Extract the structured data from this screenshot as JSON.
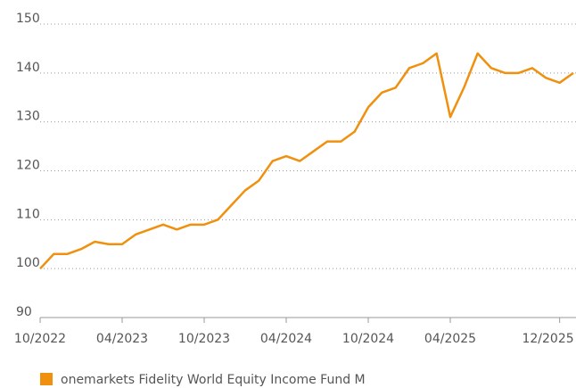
{
  "chart_data": {
    "type": "line",
    "x": [
      "2022-10",
      "2022-11",
      "2022-12",
      "2023-01",
      "2023-02",
      "2023-03",
      "2023-04",
      "2023-05",
      "2023-06",
      "2023-07",
      "2023-08",
      "2023-09",
      "2023-10",
      "2023-11",
      "2023-12",
      "2024-01",
      "2024-02",
      "2024-03",
      "2024-04",
      "2024-05",
      "2024-06",
      "2024-07",
      "2024-08",
      "2024-09",
      "2024-10",
      "2024-11",
      "2024-12",
      "2025-01",
      "2025-02",
      "2025-03",
      "2025-04",
      "2025-05",
      "2025-06",
      "2025-07",
      "2025-08",
      "2025-09",
      "2025-10",
      "2025-11",
      "2025-12",
      "2026-01"
    ],
    "series": [
      {
        "name": "onemarkets Fidelity World Equity Income Fund M",
        "color": "#f0900f",
        "values": [
          100,
          103,
          103,
          104,
          105.5,
          105,
          105,
          107,
          108,
          109,
          108,
          109,
          109,
          110,
          113,
          116,
          118,
          122,
          123,
          122,
          124,
          126,
          126,
          128,
          133,
          136,
          137,
          141,
          142,
          144,
          131,
          137,
          144,
          141,
          140,
          140,
          141,
          139,
          138,
          140
        ]
      }
    ],
    "xlim": [
      "2022-10",
      "2026-01"
    ],
    "xticks": [
      {
        "value": "2022-10",
        "label": "10/2022"
      },
      {
        "value": "2023-04",
        "label": "04/2023"
      },
      {
        "value": "2023-10",
        "label": "10/2023"
      },
      {
        "value": "2024-04",
        "label": "04/2024"
      },
      {
        "value": "2024-10",
        "label": "10/2024"
      },
      {
        "value": "2025-04",
        "label": "04/2025"
      },
      {
        "value": "2025-12",
        "label": "12/2025"
      }
    ],
    "ylim": [
      90,
      150
    ],
    "yticks": [
      90,
      100,
      110,
      120,
      130,
      140,
      150
    ],
    "grid": true,
    "legend": "bottom-left"
  }
}
